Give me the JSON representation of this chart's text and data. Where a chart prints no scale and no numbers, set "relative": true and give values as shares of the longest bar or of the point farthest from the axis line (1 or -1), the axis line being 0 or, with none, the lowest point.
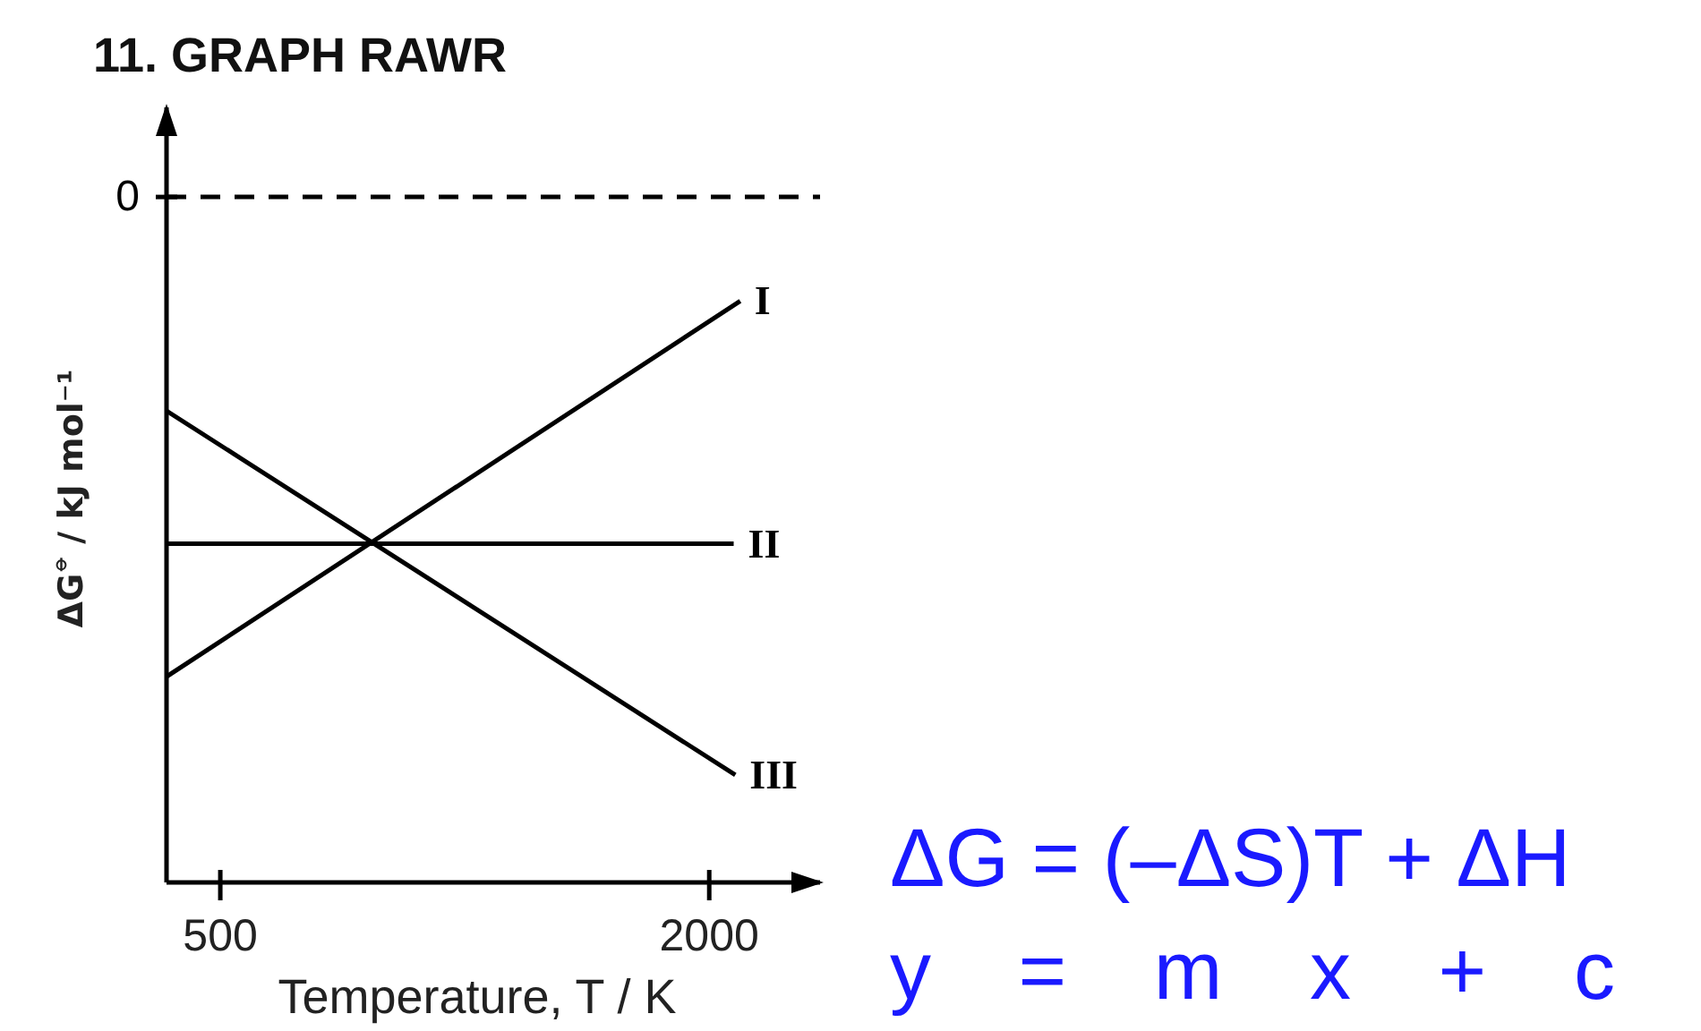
{
  "chart_data": {
    "type": "line",
    "title": "11. GRAPH RAWR",
    "xlabel": "Temperature, T / K",
    "ylabel": "ΔG$^{⦵}$ / kJ mol⁻¹",
    "relative": true,
    "xlim": [
      335,
      2340
    ],
    "xticks": [
      500,
      2000
    ],
    "marker": "none",
    "line_style": "solid",
    "series": [
      {
        "name": "I",
        "color": "#000000",
        "x": [
          335,
          2095
        ],
        "values": [
          -0.83,
          -0.18
        ]
      },
      {
        "name": "II",
        "color": "#000000",
        "x": [
          335,
          2075
        ],
        "values": [
          -0.6,
          -0.6
        ]
      },
      {
        "name": "III",
        "color": "#000000",
        "x": [
          335,
          2080
        ],
        "values": [
          -0.37,
          -1
        ]
      }
    ],
    "ref_lines": [
      {
        "axis": "y",
        "value": 0,
        "label": "0",
        "line_style": "dashed",
        "color": "#000000"
      }
    ],
    "annotations": [
      "ΔG = (–ΔS)T + ΔH",
      "y = m x + c"
    ]
  }
}
